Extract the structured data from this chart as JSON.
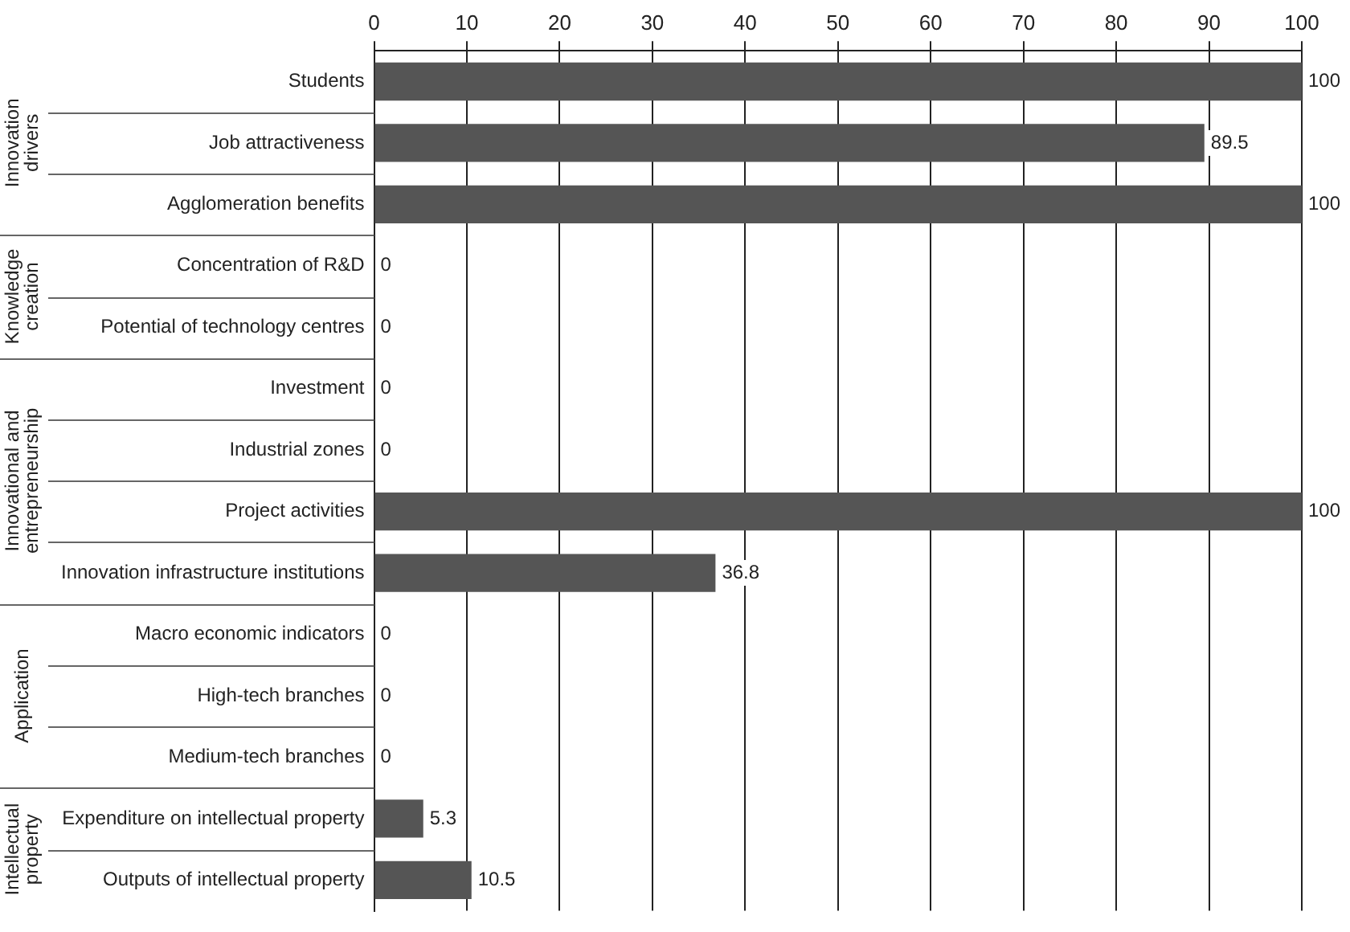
{
  "chart_data": {
    "type": "bar",
    "orientation": "horizontal",
    "categories": [
      "Students",
      "Job attractiveness",
      "Agglomeration benefits",
      "Concentration of R&D",
      "Potential of technology centres",
      "Investment",
      "Industrial zones",
      "Project activities",
      "Innovation infrastructure institutions",
      "Macro economic indicators",
      "High-tech branches",
      "Medium-tech branches",
      "Expenditure on intellectual property",
      "Outputs of intellectual property"
    ],
    "values": [
      100,
      89.5,
      100,
      0,
      0,
      0,
      0,
      100,
      36.8,
      0,
      0,
      0,
      5.3,
      10.5
    ],
    "color": "#555555",
    "xlim": [
      0,
      100
    ],
    "xticks": [
      0,
      10,
      20,
      30,
      40,
      50,
      60,
      70,
      80,
      90,
      100
    ],
    "grid": "x",
    "legend": false,
    "data_labels": true,
    "annotations": [
      "Innovation drivers",
      "Knowledge creation",
      "Innovational and entrepreneurship",
      "Application",
      "Intellectual property"
    ]
  }
}
